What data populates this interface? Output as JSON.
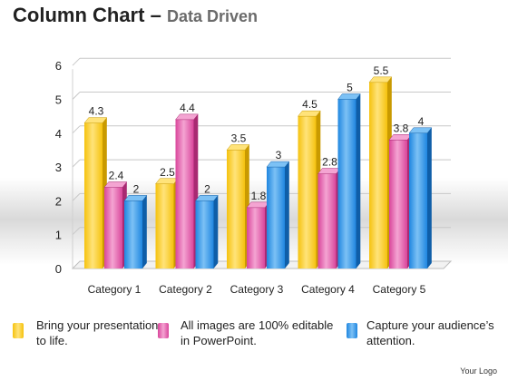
{
  "header": {
    "title": "Column Chart",
    "dash": "–",
    "subtitle": "Data Driven"
  },
  "chart_data": {
    "type": "bar",
    "categories": [
      "Category 1",
      "Category 2",
      "Category 3",
      "Category 4",
      "Category 5"
    ],
    "series": [
      {
        "values": [
          4.3,
          2.5,
          3.5,
          4.5,
          5.5
        ],
        "color": "#f5c20e",
        "dark": "#c99a00",
        "light": "#ffe37a"
      },
      {
        "values": [
          2.4,
          4.4,
          1.8,
          2.8,
          3.8
        ],
        "color": "#d9459b",
        "dark": "#a82a72",
        "light": "#f4a4d2"
      },
      {
        "values": [
          2,
          2,
          3,
          5,
          4
        ],
        "color": "#1f86e0",
        "dark": "#0f5ea8",
        "light": "#7cc1f5"
      }
    ],
    "ylim": [
      0,
      6
    ],
    "yticks": [
      0,
      1,
      2,
      3,
      4,
      5,
      6
    ],
    "grid": true,
    "legend_position": "bottom"
  },
  "legend": [
    {
      "text": "Bring your presentation to life."
    },
    {
      "text": "All images are 100% editable in PowerPoint."
    },
    {
      "text": "Capture your audience’s attention."
    }
  ],
  "footer": {
    "logo": "Your Logo"
  }
}
